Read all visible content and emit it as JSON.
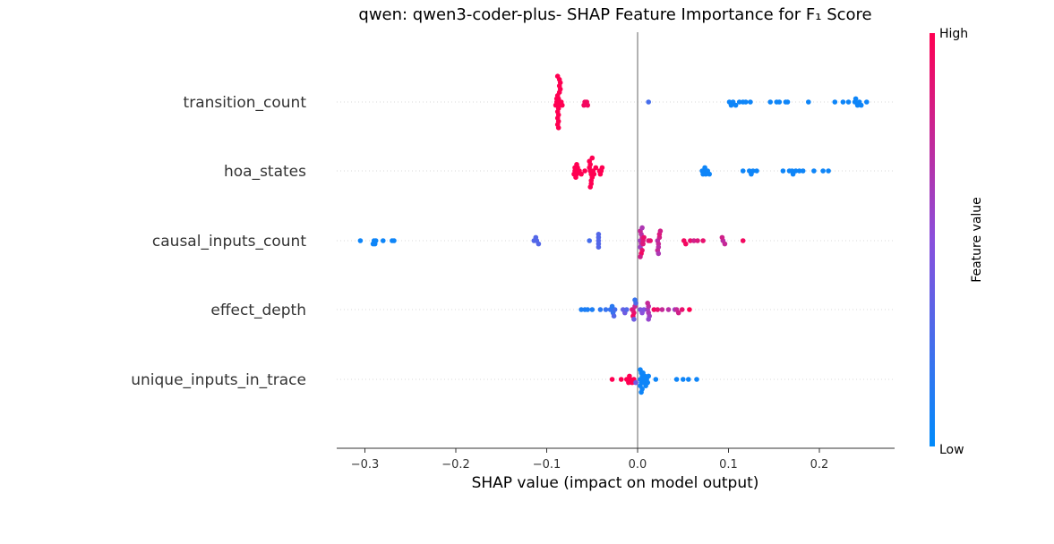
{
  "chart_data": {
    "type": "scatter",
    "title": "qwen: qwen3-coder-plus- SHAP Feature Importance for F₁ Score",
    "xlabel": "SHAP value (impact on model output)",
    "ylabel": "",
    "xlim": [
      -0.335,
      0.28
    ],
    "x_ticks": [
      -0.3,
      -0.2,
      -0.1,
      0.0,
      0.1,
      0.2
    ],
    "x_tick_labels": [
      "−0.3",
      "−0.2",
      "−0.1",
      "0.0",
      "0.1",
      "0.2"
    ],
    "colorbar": {
      "label": "Feature value",
      "high_label": "High",
      "low_label": "Low",
      "low_color": "#008bfb",
      "high_color": "#ff0052"
    },
    "features": [
      {
        "name": "transition_count",
        "points": [
          {
            "x": -0.086,
            "v": 1.0
          },
          {
            "x": -0.086,
            "v": 1.0
          },
          {
            "x": -0.087,
            "v": 1.0
          },
          {
            "x": -0.087,
            "v": 1.0
          },
          {
            "x": -0.088,
            "v": 1.0
          },
          {
            "x": -0.088,
            "v": 1.0
          },
          {
            "x": -0.086,
            "v": 1.0
          },
          {
            "x": -0.087,
            "v": 1.0
          },
          {
            "x": -0.089,
            "v": 1.0
          },
          {
            "x": -0.085,
            "v": 1.0
          },
          {
            "x": -0.088,
            "v": 1.0
          },
          {
            "x": -0.086,
            "v": 1.0
          },
          {
            "x": -0.084,
            "v": 1.0
          },
          {
            "x": -0.087,
            "v": 1.0
          },
          {
            "x": -0.09,
            "v": 1.0
          },
          {
            "x": -0.085,
            "v": 1.0
          },
          {
            "x": -0.088,
            "v": 1.0
          },
          {
            "x": -0.086,
            "v": 1.0
          },
          {
            "x": -0.087,
            "v": 1.0
          },
          {
            "x": -0.089,
            "v": 1.0
          },
          {
            "x": -0.083,
            "v": 1.0
          },
          {
            "x": -0.088,
            "v": 1.0
          },
          {
            "x": -0.058,
            "v": 0.95
          },
          {
            "x": -0.056,
            "v": 0.95
          },
          {
            "x": -0.059,
            "v": 0.95
          },
          {
            "x": -0.055,
            "v": 0.95
          },
          {
            "x": 0.012,
            "v": 0.25
          },
          {
            "x": 0.101,
            "v": 0.05
          },
          {
            "x": 0.105,
            "v": 0.05
          },
          {
            "x": 0.108,
            "v": 0.05
          },
          {
            "x": 0.112,
            "v": 0.05
          },
          {
            "x": 0.116,
            "v": 0.05
          },
          {
            "x": 0.119,
            "v": 0.05
          },
          {
            "x": 0.124,
            "v": 0.05
          },
          {
            "x": 0.103,
            "v": 0.05
          },
          {
            "x": 0.146,
            "v": 0.05
          },
          {
            "x": 0.153,
            "v": 0.05
          },
          {
            "x": 0.156,
            "v": 0.05
          },
          {
            "x": 0.163,
            "v": 0.05
          },
          {
            "x": 0.165,
            "v": 0.05
          },
          {
            "x": 0.188,
            "v": 0.05
          },
          {
            "x": 0.217,
            "v": 0.05
          },
          {
            "x": 0.226,
            "v": 0.05
          },
          {
            "x": 0.232,
            "v": 0.05
          },
          {
            "x": 0.239,
            "v": 0.05
          },
          {
            "x": 0.242,
            "v": 0.05
          },
          {
            "x": 0.244,
            "v": 0.05
          },
          {
            "x": 0.246,
            "v": 0.05
          },
          {
            "x": 0.252,
            "v": 0.05
          },
          {
            "x": 0.24,
            "v": 0.05
          }
        ]
      },
      {
        "name": "hoa_states",
        "points": [
          {
            "x": -0.068,
            "v": 1.0
          },
          {
            "x": -0.069,
            "v": 1.0
          },
          {
            "x": -0.067,
            "v": 1.0
          },
          {
            "x": -0.07,
            "v": 1.0
          },
          {
            "x": -0.066,
            "v": 1.0
          },
          {
            "x": -0.068,
            "v": 1.0
          },
          {
            "x": -0.064,
            "v": 1.0
          },
          {
            "x": -0.062,
            "v": 1.0
          },
          {
            "x": -0.069,
            "v": 1.0
          },
          {
            "x": -0.067,
            "v": 1.0
          },
          {
            "x": -0.052,
            "v": 1.0
          },
          {
            "x": -0.051,
            "v": 1.0
          },
          {
            "x": -0.053,
            "v": 1.0
          },
          {
            "x": -0.05,
            "v": 1.0
          },
          {
            "x": -0.052,
            "v": 1.0
          },
          {
            "x": -0.051,
            "v": 1.0
          },
          {
            "x": -0.049,
            "v": 1.0
          },
          {
            "x": -0.053,
            "v": 1.0
          },
          {
            "x": -0.051,
            "v": 1.0
          },
          {
            "x": -0.05,
            "v": 1.0
          },
          {
            "x": -0.052,
            "v": 1.0
          },
          {
            "x": -0.048,
            "v": 1.0
          },
          {
            "x": -0.058,
            "v": 1.0
          },
          {
            "x": -0.042,
            "v": 1.0
          },
          {
            "x": -0.04,
            "v": 1.0
          },
          {
            "x": -0.041,
            "v": 1.0
          },
          {
            "x": -0.039,
            "v": 1.0
          },
          {
            "x": -0.046,
            "v": 1.0
          },
          {
            "x": 0.071,
            "v": 0.05
          },
          {
            "x": 0.073,
            "v": 0.05
          },
          {
            "x": 0.075,
            "v": 0.05
          },
          {
            "x": 0.077,
            "v": 0.05
          },
          {
            "x": 0.074,
            "v": 0.05
          },
          {
            "x": 0.079,
            "v": 0.05
          },
          {
            "x": 0.072,
            "v": 0.05
          },
          {
            "x": 0.116,
            "v": 0.05
          },
          {
            "x": 0.123,
            "v": 0.05
          },
          {
            "x": 0.127,
            "v": 0.05
          },
          {
            "x": 0.131,
            "v": 0.05
          },
          {
            "x": 0.125,
            "v": 0.05
          },
          {
            "x": 0.16,
            "v": 0.05
          },
          {
            "x": 0.167,
            "v": 0.05
          },
          {
            "x": 0.17,
            "v": 0.05
          },
          {
            "x": 0.174,
            "v": 0.05
          },
          {
            "x": 0.178,
            "v": 0.05
          },
          {
            "x": 0.182,
            "v": 0.05
          },
          {
            "x": 0.194,
            "v": 0.05
          },
          {
            "x": 0.204,
            "v": 0.05
          },
          {
            "x": 0.21,
            "v": 0.05
          },
          {
            "x": 0.171,
            "v": 0.05
          }
        ]
      },
      {
        "name": "causal_inputs_count",
        "points": [
          {
            "x": -0.305,
            "v": 0.05
          },
          {
            "x": -0.29,
            "v": 0.05
          },
          {
            "x": -0.288,
            "v": 0.05
          },
          {
            "x": -0.291,
            "v": 0.05
          },
          {
            "x": -0.289,
            "v": 0.05
          },
          {
            "x": -0.28,
            "v": 0.05
          },
          {
            "x": -0.27,
            "v": 0.05
          },
          {
            "x": -0.268,
            "v": 0.05
          },
          {
            "x": -0.114,
            "v": 0.3
          },
          {
            "x": -0.111,
            "v": 0.3
          },
          {
            "x": -0.109,
            "v": 0.3
          },
          {
            "x": -0.112,
            "v": 0.3
          },
          {
            "x": -0.053,
            "v": 0.25
          },
          {
            "x": -0.043,
            "v": 0.3
          },
          {
            "x": -0.043,
            "v": 0.3
          },
          {
            "x": -0.043,
            "v": 0.3
          },
          {
            "x": -0.043,
            "v": 0.3
          },
          {
            "x": -0.043,
            "v": 0.3
          },
          {
            "x": 0.003,
            "v": 0.6
          },
          {
            "x": 0.004,
            "v": 0.7
          },
          {
            "x": 0.005,
            "v": 0.8
          },
          {
            "x": 0.003,
            "v": 0.6
          },
          {
            "x": 0.006,
            "v": 0.85
          },
          {
            "x": 0.004,
            "v": 0.7
          },
          {
            "x": 0.005,
            "v": 0.9
          },
          {
            "x": 0.003,
            "v": 0.75
          },
          {
            "x": 0.006,
            "v": 0.85
          },
          {
            "x": 0.004,
            "v": 0.95
          },
          {
            "x": 0.005,
            "v": 0.65
          },
          {
            "x": 0.007,
            "v": 0.9
          },
          {
            "x": 0.003,
            "v": 0.8
          },
          {
            "x": 0.012,
            "v": 0.85
          },
          {
            "x": 0.014,
            "v": 0.9
          },
          {
            "x": 0.022,
            "v": 0.7
          },
          {
            "x": 0.023,
            "v": 0.75
          },
          {
            "x": 0.024,
            "v": 0.8
          },
          {
            "x": 0.023,
            "v": 0.7
          },
          {
            "x": 0.024,
            "v": 0.85
          },
          {
            "x": 0.022,
            "v": 0.75
          },
          {
            "x": 0.025,
            "v": 0.8
          },
          {
            "x": 0.023,
            "v": 0.65
          },
          {
            "x": 0.051,
            "v": 0.95
          },
          {
            "x": 0.053,
            "v": 0.95
          },
          {
            "x": 0.058,
            "v": 0.9
          },
          {
            "x": 0.062,
            "v": 0.8
          },
          {
            "x": 0.066,
            "v": 0.85
          },
          {
            "x": 0.072,
            "v": 0.9
          },
          {
            "x": 0.094,
            "v": 0.7
          },
          {
            "x": 0.096,
            "v": 0.75
          },
          {
            "x": 0.093,
            "v": 0.8
          },
          {
            "x": 0.116,
            "v": 0.95
          }
        ]
      },
      {
        "name": "effect_depth",
        "points": [
          {
            "x": -0.062,
            "v": 0.1
          },
          {
            "x": -0.058,
            "v": 0.1
          },
          {
            "x": -0.055,
            "v": 0.1
          },
          {
            "x": -0.05,
            "v": 0.1
          },
          {
            "x": -0.041,
            "v": 0.15
          },
          {
            "x": -0.035,
            "v": 0.2
          },
          {
            "x": -0.03,
            "v": 0.2
          },
          {
            "x": -0.026,
            "v": 0.15
          },
          {
            "x": -0.027,
            "v": 0.2
          },
          {
            "x": -0.025,
            "v": 0.25
          },
          {
            "x": -0.028,
            "v": 0.15
          },
          {
            "x": -0.026,
            "v": 0.3
          },
          {
            "x": -0.016,
            "v": 0.35
          },
          {
            "x": -0.014,
            "v": 0.4
          },
          {
            "x": -0.012,
            "v": 0.3
          },
          {
            "x": -0.005,
            "v": 0.8
          },
          {
            "x": -0.004,
            "v": 0.9
          },
          {
            "x": -0.006,
            "v": 0.85
          },
          {
            "x": -0.003,
            "v": 0.75
          },
          {
            "x": -0.005,
            "v": 0.95
          },
          {
            "x": -0.002,
            "v": 0.3
          },
          {
            "x": -0.004,
            "v": 0.4
          },
          {
            "x": -0.003,
            "v": 0.2
          },
          {
            "x": 0.003,
            "v": 0.45
          },
          {
            "x": 0.005,
            "v": 0.5
          },
          {
            "x": 0.007,
            "v": 0.45
          },
          {
            "x": 0.011,
            "v": 0.6
          },
          {
            "x": 0.012,
            "v": 0.65
          },
          {
            "x": 0.012,
            "v": 0.7
          },
          {
            "x": 0.013,
            "v": 0.6
          },
          {
            "x": 0.011,
            "v": 0.75
          },
          {
            "x": 0.012,
            "v": 0.55
          },
          {
            "x": 0.018,
            "v": 0.95
          },
          {
            "x": 0.022,
            "v": 0.9
          },
          {
            "x": 0.027,
            "v": 0.75
          },
          {
            "x": 0.034,
            "v": 0.7
          },
          {
            "x": 0.041,
            "v": 0.6
          },
          {
            "x": 0.043,
            "v": 0.75
          },
          {
            "x": 0.045,
            "v": 0.8
          },
          {
            "x": 0.049,
            "v": 0.9
          },
          {
            "x": 0.057,
            "v": 1.0
          }
        ]
      },
      {
        "name": "unique_inputs_in_trace",
        "points": [
          {
            "x": -0.028,
            "v": 1.0
          },
          {
            "x": -0.018,
            "v": 1.0
          },
          {
            "x": -0.012,
            "v": 1.0
          },
          {
            "x": -0.01,
            "v": 1.0
          },
          {
            "x": -0.008,
            "v": 1.0
          },
          {
            "x": -0.006,
            "v": 1.0
          },
          {
            "x": -0.004,
            "v": 1.0
          },
          {
            "x": -0.009,
            "v": 1.0
          },
          {
            "x": -0.002,
            "v": 0.4
          },
          {
            "x": 0.003,
            "v": 0.05
          },
          {
            "x": 0.004,
            "v": 0.05
          },
          {
            "x": 0.005,
            "v": 0.05
          },
          {
            "x": 0.003,
            "v": 0.05
          },
          {
            "x": 0.006,
            "v": 0.05
          },
          {
            "x": 0.004,
            "v": 0.05
          },
          {
            "x": 0.005,
            "v": 0.05
          },
          {
            "x": 0.003,
            "v": 0.05
          },
          {
            "x": 0.007,
            "v": 0.05
          },
          {
            "x": 0.004,
            "v": 0.05
          },
          {
            "x": 0.008,
            "v": 0.05
          },
          {
            "x": 0.009,
            "v": 0.05
          },
          {
            "x": 0.01,
            "v": 0.05
          },
          {
            "x": 0.011,
            "v": 0.05
          },
          {
            "x": 0.012,
            "v": 0.05
          },
          {
            "x": 0.006,
            "v": 0.05
          },
          {
            "x": 0.02,
            "v": 0.05
          },
          {
            "x": 0.043,
            "v": 0.05
          },
          {
            "x": 0.05,
            "v": 0.05
          },
          {
            "x": 0.056,
            "v": 0.05
          },
          {
            "x": 0.065,
            "v": 0.05
          }
        ]
      }
    ]
  }
}
